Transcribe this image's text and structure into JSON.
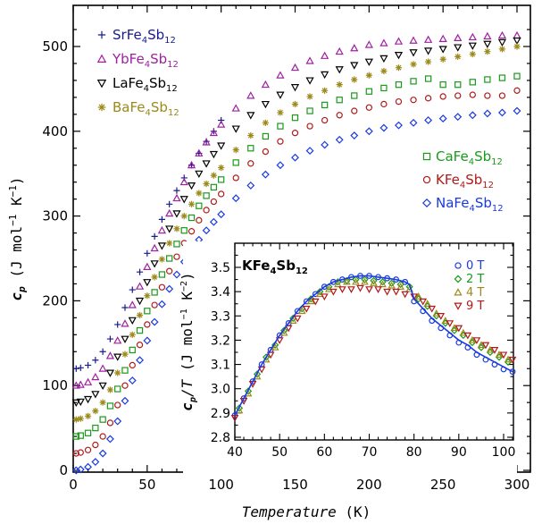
{
  "chart_data": [
    {
      "type": "scatter",
      "xlabel_var": "Temperature",
      "xlabel_unit": "(K)",
      "ylabel_var": "c",
      "ylabel_sub": "p",
      "ylabel_unit_parts": [
        "(J mol",
        "−1",
        " K",
        "−1",
        ")"
      ],
      "xlim": [
        0,
        305
      ],
      "ylim": [
        0,
        525
      ],
      "xticks": [
        0,
        50,
        100,
        150,
        200,
        250,
        300
      ],
      "yticks": [
        0,
        100,
        200,
        300,
        400,
        500
      ],
      "legend_placement": "top-left and right-middle",
      "series": [
        {
          "name": "SrFe4Sb12",
          "base": "SrFe",
          "sub1": "4",
          "mid": "Sb",
          "sub2": "12",
          "marker": "plus",
          "color": "#1a1a8c",
          "offset": 120,
          "x": [
            2,
            5,
            10,
            15,
            20,
            25,
            30,
            35,
            40,
            45,
            50,
            55,
            60,
            65,
            70,
            75,
            80,
            85,
            90,
            95,
            100
          ],
          "y": [
            120,
            121,
            124,
            130,
            140,
            155,
            172,
            192,
            213,
            234,
            256,
            276,
            296,
            314,
            330,
            345,
            360,
            374,
            388,
            400,
            413
          ]
        },
        {
          "name": "YbFe4Sb12",
          "base": "YbFe",
          "sub1": "4",
          "mid": "Sb",
          "sub2": "12",
          "marker": "triangle-up",
          "color": "#a020a0",
          "offset": 100,
          "x": [
            2,
            5,
            10,
            15,
            20,
            25,
            30,
            35,
            40,
            45,
            50,
            55,
            60,
            65,
            70,
            75,
            80,
            85,
            90,
            95,
            100,
            110,
            120,
            130,
            140,
            150,
            160,
            170,
            180,
            190,
            200,
            210,
            220,
            230,
            240,
            250,
            260,
            270,
            280,
            290,
            300
          ],
          "y": [
            100,
            101,
            104,
            110,
            120,
            135,
            153,
            173,
            195,
            217,
            240,
            262,
            283,
            303,
            321,
            340,
            360,
            374,
            387,
            398,
            408,
            427,
            442,
            455,
            466,
            475,
            483,
            489,
            494,
            498,
            502,
            504,
            506,
            507,
            508,
            509,
            510,
            511,
            512,
            513,
            513
          ]
        },
        {
          "name": "LaFe4Sb12",
          "base": "LaFe",
          "sub1": "4",
          "mid": "Sb",
          "sub2": "12",
          "marker": "triangle-down",
          "color": "#000000",
          "offset": 80,
          "x": [
            2,
            5,
            10,
            15,
            20,
            25,
            30,
            35,
            40,
            45,
            50,
            55,
            60,
            65,
            70,
            75,
            80,
            85,
            90,
            95,
            100,
            110,
            120,
            130,
            140,
            150,
            160,
            170,
            180,
            190,
            200,
            210,
            220,
            230,
            240,
            250,
            260,
            270,
            280,
            290,
            300
          ],
          "y": [
            80,
            81,
            84,
            90,
            100,
            115,
            134,
            155,
            177,
            200,
            222,
            244,
            265,
            285,
            303,
            320,
            336,
            350,
            362,
            373,
            383,
            403,
            419,
            432,
            443,
            452,
            460,
            467,
            473,
            478,
            482,
            486,
            490,
            493,
            495,
            497,
            499,
            501,
            503,
            505,
            507
          ]
        },
        {
          "name": "BaFe4Sb12",
          "base": "BaFe",
          "sub1": "4",
          "mid": "Sb",
          "sub2": "12",
          "marker": "star",
          "color": "#9c8a1a",
          "offset": 60,
          "x": [
            2,
            5,
            10,
            15,
            20,
            25,
            30,
            35,
            40,
            45,
            50,
            55,
            60,
            65,
            70,
            75,
            80,
            85,
            90,
            95,
            100,
            110,
            120,
            130,
            140,
            150,
            160,
            170,
            180,
            190,
            200,
            210,
            220,
            230,
            240,
            250,
            260,
            270,
            280,
            290,
            300
          ],
          "y": [
            60,
            61,
            64,
            70,
            80,
            95,
            115,
            137,
            160,
            183,
            206,
            228,
            249,
            268,
            285,
            300,
            314,
            327,
            338,
            348,
            357,
            378,
            395,
            410,
            422,
            432,
            441,
            448,
            455,
            461,
            466,
            471,
            475,
            479,
            482,
            485,
            488,
            491,
            494,
            497,
            500
          ]
        },
        {
          "name": "CaFe4Sb12",
          "base": "CaFe",
          "sub1": "4",
          "mid": "Sb",
          "sub2": "12",
          "marker": "square",
          "color": "#1a9a1a",
          "offset": 40,
          "x": [
            2,
            5,
            10,
            15,
            20,
            25,
            30,
            35,
            40,
            45,
            50,
            55,
            60,
            65,
            70,
            75,
            80,
            85,
            90,
            95,
            100,
            110,
            120,
            130,
            140,
            150,
            160,
            170,
            180,
            190,
            200,
            210,
            220,
            230,
            240,
            250,
            260,
            270,
            280,
            290,
            300
          ],
          "y": [
            40,
            41,
            44,
            50,
            60,
            76,
            96,
            118,
            142,
            165,
            188,
            210,
            231,
            250,
            267,
            283,
            298,
            312,
            324,
            334,
            343,
            363,
            380,
            394,
            406,
            416,
            424,
            431,
            437,
            442,
            447,
            451,
            455,
            459,
            462,
            455,
            455,
            458,
            461,
            463,
            465
          ]
        },
        {
          "name": "KFe4Sb12",
          "base": "KFe",
          "sub1": "4",
          "mid": "Sb",
          "sub2": "12",
          "marker": "circle",
          "color": "#b01a1a",
          "offset": 20,
          "x": [
            2,
            5,
            10,
            15,
            20,
            25,
            30,
            35,
            40,
            45,
            50,
            55,
            60,
            65,
            70,
            75,
            80,
            85,
            90,
            95,
            100,
            110,
            120,
            130,
            140,
            150,
            160,
            170,
            180,
            190,
            200,
            210,
            220,
            230,
            240,
            250,
            260,
            270,
            280,
            290,
            300
          ],
          "y": [
            20,
            21,
            24,
            30,
            40,
            56,
            77,
            100,
            124,
            148,
            172,
            195,
            216,
            235,
            252,
            268,
            282,
            295,
            307,
            317,
            326,
            345,
            362,
            376,
            388,
            398,
            406,
            413,
            419,
            424,
            428,
            432,
            435,
            437,
            439,
            441,
            442,
            443,
            442,
            442,
            448
          ]
        },
        {
          "name": "NaFe4Sb12",
          "base": "NaFe",
          "sub1": "4",
          "mid": "Sb",
          "sub2": "12",
          "marker": "diamond",
          "color": "#1a3ae0",
          "offset": 0,
          "x": [
            2,
            5,
            10,
            15,
            20,
            25,
            30,
            35,
            40,
            45,
            50,
            55,
            60,
            65,
            70,
            75,
            80,
            85,
            90,
            95,
            100,
            110,
            120,
            130,
            140,
            150,
            160,
            170,
            180,
            190,
            200,
            210,
            220,
            230,
            240,
            250,
            260,
            270,
            280,
            290,
            300
          ],
          "y": [
            0,
            1,
            4,
            10,
            20,
            37,
            58,
            82,
            106,
            130,
            153,
            175,
            196,
            214,
            231,
            246,
            260,
            272,
            283,
            293,
            302,
            321,
            336,
            349,
            360,
            369,
            377,
            384,
            390,
            395,
            400,
            404,
            407,
            410,
            413,
            415,
            417,
            419,
            421,
            422,
            424
          ]
        }
      ]
    },
    {
      "type": "scatter",
      "title_base": "KFe",
      "title_sub1": "4",
      "title_mid": "Sb",
      "title_sub2": "12",
      "ylabel_var": "c",
      "ylabel_sub": "p",
      "ylabel_over": "/T",
      "ylabel_unit_parts": [
        "(J mol",
        "−1",
        " K",
        "−2",
        ")"
      ],
      "xlim": [
        40,
        102
      ],
      "ylim": [
        2.8,
        3.55
      ],
      "xticks": [
        40,
        50,
        60,
        70,
        80,
        90,
        100
      ],
      "yticks": [
        2.8,
        2.9,
        3.0,
        3.1,
        3.2,
        3.3,
        3.4,
        3.5
      ],
      "ytick_labels": [
        "2.8",
        "2.9",
        "3.0",
        "3.1",
        "3.2",
        "3.3",
        "3.4",
        "3.5"
      ],
      "legend_placement": "top-right",
      "fit_line": {
        "x": [
          40,
          42,
          44,
          46,
          48,
          50,
          52,
          54,
          56,
          58,
          60,
          62,
          64,
          66,
          68,
          70,
          72,
          74,
          76,
          78,
          79,
          80,
          82,
          84,
          86,
          88,
          90,
          92,
          94,
          96,
          98,
          100,
          102
        ],
        "y": [
          2.89,
          2.96,
          3.03,
          3.1,
          3.16,
          3.22,
          3.27,
          3.32,
          3.36,
          3.39,
          3.42,
          3.44,
          3.45,
          3.46,
          3.465,
          3.465,
          3.46,
          3.455,
          3.45,
          3.44,
          3.43,
          3.37,
          3.33,
          3.29,
          3.26,
          3.23,
          3.2,
          3.18,
          3.15,
          3.13,
          3.11,
          3.09,
          3.07
        ],
        "color": "#1a3ae0"
      },
      "series": [
        {
          "name": "0 T",
          "marker": "circle",
          "color": "#1a3ae0",
          "x": [
            40,
            42,
            44,
            46,
            48,
            50,
            52,
            54,
            56,
            58,
            60,
            62,
            64,
            66,
            68,
            70,
            72,
            74,
            76,
            78,
            80,
            82,
            84,
            86,
            88,
            90,
            92,
            94,
            96,
            98,
            100,
            102
          ],
          "y": [
            2.89,
            2.96,
            3.03,
            3.1,
            3.16,
            3.22,
            3.27,
            3.32,
            3.36,
            3.39,
            3.42,
            3.44,
            3.45,
            3.46,
            3.465,
            3.465,
            3.46,
            3.455,
            3.45,
            3.44,
            3.36,
            3.32,
            3.28,
            3.25,
            3.22,
            3.19,
            3.17,
            3.14,
            3.12,
            3.1,
            3.08,
            3.07
          ]
        },
        {
          "name": "2 T",
          "marker": "diamond",
          "color": "#1a9a1a",
          "x": [
            41,
            43,
            45,
            47,
            49,
            51,
            53,
            55,
            57,
            59,
            61,
            63,
            65,
            67,
            69,
            71,
            73,
            75,
            77,
            79,
            81,
            83,
            85,
            87,
            89,
            91,
            93,
            95,
            97,
            99,
            101
          ],
          "y": [
            2.92,
            2.99,
            3.06,
            3.13,
            3.18,
            3.24,
            3.29,
            3.33,
            3.37,
            3.4,
            3.42,
            3.44,
            3.445,
            3.45,
            3.45,
            3.445,
            3.44,
            3.435,
            3.43,
            3.42,
            3.37,
            3.34,
            3.3,
            3.27,
            3.24,
            3.22,
            3.19,
            3.17,
            3.15,
            3.13,
            3.11
          ]
        },
        {
          "name": "4 T",
          "marker": "triangle-up",
          "color": "#9c8a1a",
          "x": [
            41,
            43,
            45,
            47,
            49,
            51,
            53,
            55,
            57,
            59,
            61,
            63,
            65,
            67,
            69,
            71,
            73,
            75,
            77,
            79,
            81,
            83,
            85,
            87,
            89,
            91,
            93,
            95,
            97,
            99,
            101
          ],
          "y": [
            2.91,
            2.98,
            3.05,
            3.12,
            3.17,
            3.23,
            3.28,
            3.32,
            3.36,
            3.39,
            3.41,
            3.43,
            3.44,
            3.44,
            3.44,
            3.435,
            3.43,
            3.425,
            3.42,
            3.41,
            3.38,
            3.35,
            3.31,
            3.28,
            3.25,
            3.23,
            3.2,
            3.18,
            3.16,
            3.14,
            3.12
          ]
        },
        {
          "name": "9 T",
          "marker": "triangle-down",
          "color": "#b01a1a",
          "x": [
            40,
            42,
            44,
            46,
            48,
            50,
            52,
            54,
            56,
            58,
            60,
            62,
            64,
            66,
            68,
            70,
            72,
            74,
            76,
            78,
            80,
            82,
            84,
            86,
            88,
            90,
            92,
            94,
            96,
            98,
            100,
            102
          ],
          "y": [
            2.88,
            2.95,
            3.02,
            3.08,
            3.14,
            3.2,
            3.25,
            3.29,
            3.33,
            3.36,
            3.38,
            3.4,
            3.41,
            3.41,
            3.415,
            3.41,
            3.41,
            3.4,
            3.4,
            3.39,
            3.38,
            3.36,
            3.33,
            3.3,
            3.27,
            3.25,
            3.22,
            3.2,
            3.18,
            3.16,
            3.14,
            3.12
          ]
        }
      ]
    }
  ]
}
